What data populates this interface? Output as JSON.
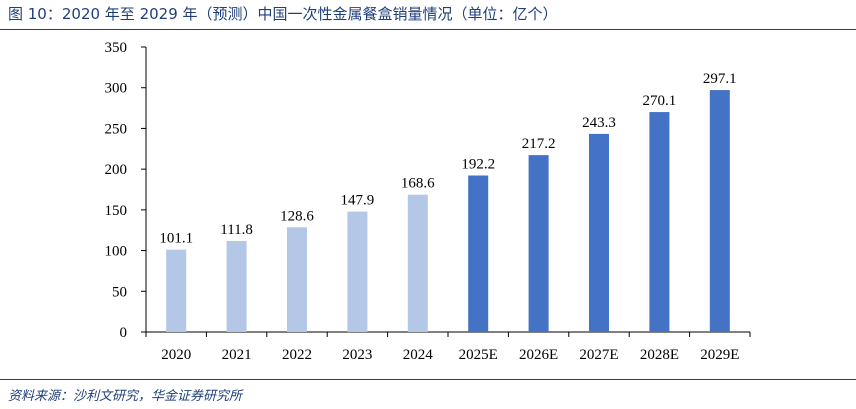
{
  "figure": {
    "title": "图 10：2020 年至 2029 年（预测）中国一次性金属餐盒销量情况（单位：亿个）",
    "source": "资料来源：沙利文研究，华金证券研究所"
  },
  "colors": {
    "actual_bar": "#b4c7e7",
    "forecast_bar": "#4472c4",
    "axis": "#000000",
    "header_text": "#1f3f7a"
  },
  "chart_data": {
    "type": "bar",
    "title": "图 10：2020 年至 2029 年（预测）中国一次性金属餐盒销量情况（单位：亿个）",
    "xlabel": "",
    "ylabel": "",
    "categories": [
      "2020",
      "2021",
      "2022",
      "2023",
      "2024",
      "2025E",
      "2026E",
      "2027E",
      "2028E",
      "2029E"
    ],
    "values": [
      101.1,
      111.8,
      128.6,
      147.9,
      168.6,
      192.2,
      217.2,
      243.3,
      270.1,
      297.1
    ],
    "value_labels": [
      "101.1",
      "111.8",
      "128.6",
      "147.9",
      "168.6",
      "192.2",
      "217.2",
      "243.3",
      "270.1",
      "297.1"
    ],
    "forecast": [
      false,
      false,
      false,
      false,
      false,
      true,
      true,
      true,
      true,
      true
    ],
    "ylim": [
      0,
      350
    ],
    "yticks": [
      0,
      50,
      100,
      150,
      200,
      250,
      300,
      350
    ],
    "ytick_labels": [
      "0",
      "50",
      "100",
      "150",
      "200",
      "250",
      "300",
      "350"
    ],
    "grid": false,
    "legend": "none"
  }
}
